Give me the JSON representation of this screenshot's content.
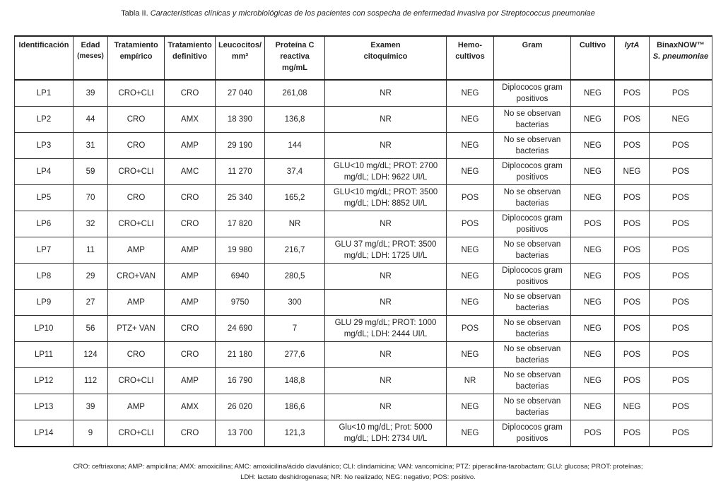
{
  "caption": {
    "label": "Tabla II.",
    "title": "Características clínicas y microbiológicas de los pacientes con sospecha de enfermedad invasiva por Streptococcus pneumoniae"
  },
  "headers": [
    {
      "l1": "Identificación",
      "l2": ""
    },
    {
      "l1": "Edad",
      "l2": "(meses)"
    },
    {
      "l1": "Tratamiento",
      "l2": "empírico"
    },
    {
      "l1": "Tratamiento",
      "l2": "definitivo"
    },
    {
      "l1": "Leucocitos/",
      "l2": "mm³"
    },
    {
      "l1": "Proteína C",
      "l2": "reactiva mg/mL"
    },
    {
      "l1": "Examen",
      "l2": "citoquímico"
    },
    {
      "l1": "Hemo-",
      "l2": "cultivos"
    },
    {
      "l1": "Gram",
      "l2": ""
    },
    {
      "l1": "Cultivo",
      "l2": ""
    },
    {
      "l1": "lytA",
      "l2": ""
    },
    {
      "l1": "BinaxNOW™",
      "l2": "S. pneumoniae"
    }
  ],
  "rows": [
    [
      "LP1",
      "39",
      "CRO+CLI",
      "CRO",
      "27 040",
      "261,08",
      "NR",
      "NEG",
      "Diplococos gram positivos",
      "NEG",
      "POS",
      "POS"
    ],
    [
      "LP2",
      "44",
      "CRO",
      "AMX",
      "18 390",
      "136,8",
      "NR",
      "NEG",
      "No se observan bacterias",
      "NEG",
      "POS",
      "NEG"
    ],
    [
      "LP3",
      "31",
      "CRO",
      "AMP",
      "29 190",
      "144",
      "NR",
      "NEG",
      "No se observan bacterias",
      "NEG",
      "POS",
      "POS"
    ],
    [
      "LP4",
      "59",
      "CRO+CLI",
      "AMC",
      "11 270",
      "37,4",
      "GLU<10 mg/dL; PROT: 2700 mg/dL; LDH: 9622 UI/L",
      "NEG",
      "Diplococos gram positivos",
      "NEG",
      "NEG",
      "POS"
    ],
    [
      "LP5",
      "70",
      "CRO",
      "CRO",
      "25 340",
      "165,2",
      "GLU<10 mg/dL; PROT: 3500 mg/dL; LDH: 8852 UI/L",
      "POS",
      "No se observan bacterias",
      "NEG",
      "POS",
      "POS"
    ],
    [
      "LP6",
      "32",
      "CRO+CLI",
      "CRO",
      "17 820",
      "NR",
      "NR",
      "POS",
      "Diplococos gram positivos",
      "POS",
      "POS",
      "POS"
    ],
    [
      "LP7",
      "11",
      "AMP",
      "AMP",
      "19 980",
      "216,7",
      "GLU 37 mg/dL; PROT: 3500 mg/dL; LDH: 1725 UI/L",
      "NEG",
      "No se observan bacterias",
      "NEG",
      "POS",
      "POS"
    ],
    [
      "LP8",
      "29",
      "CRO+VAN",
      "AMP",
      "6940",
      "280,5",
      "NR",
      "NEG",
      "Diplococos gram positivos",
      "NEG",
      "POS",
      "POS"
    ],
    [
      "LP9",
      "27",
      "AMP",
      "AMP",
      "9750",
      "300",
      "NR",
      "NEG",
      "No se observan bacterias",
      "NEG",
      "POS",
      "POS"
    ],
    [
      "LP10",
      "56",
      "PTZ+ VAN",
      "CRO",
      "24 690",
      "7",
      "GLU 29 mg/dL; PROT: 1000 mg/dL; LDH: 2444 UI/L",
      "POS",
      "No se observan bacterias",
      "NEG",
      "POS",
      "POS"
    ],
    [
      "LP11",
      "124",
      "CRO",
      "CRO",
      "21 180",
      "277,6",
      "NR",
      "NEG",
      "No se observan bacterias",
      "NEG",
      "POS",
      "POS"
    ],
    [
      "LP12",
      "112",
      "CRO+CLI",
      "AMP",
      "16 790",
      "148,8",
      "NR",
      "NR",
      "No se observan bacterias",
      "NEG",
      "POS",
      "POS"
    ],
    [
      "LP13",
      "39",
      "AMP",
      "AMX",
      "26 020",
      "186,6",
      "NR",
      "NEG",
      "No se observan bacterias",
      "NEG",
      "NEG",
      "POS"
    ],
    [
      "LP14",
      "9",
      "CRO+CLI",
      "CRO",
      "13 700",
      "121,3",
      "Glu<10 mg/dL; Prot: 5000 mg/dL; LDH: 2734 UI/L",
      "NEG",
      "Diplococos gram positivos",
      "POS",
      "POS",
      "POS"
    ]
  ],
  "footnote": {
    "line1": "CRO: ceftriaxona; AMP: ampicilina; AMX: amoxicilina; AMC: amoxicilina/ácido clavulánico; CLI: clindamicina; VAN: vancomicina; PTZ: piperacilina-tazobactam; GLU: glucosa; PROT: proteínas;",
    "line2": "LDH: lactato deshidrogenasa; NR: No realizado; NEG: negativo; POS: positivo."
  }
}
